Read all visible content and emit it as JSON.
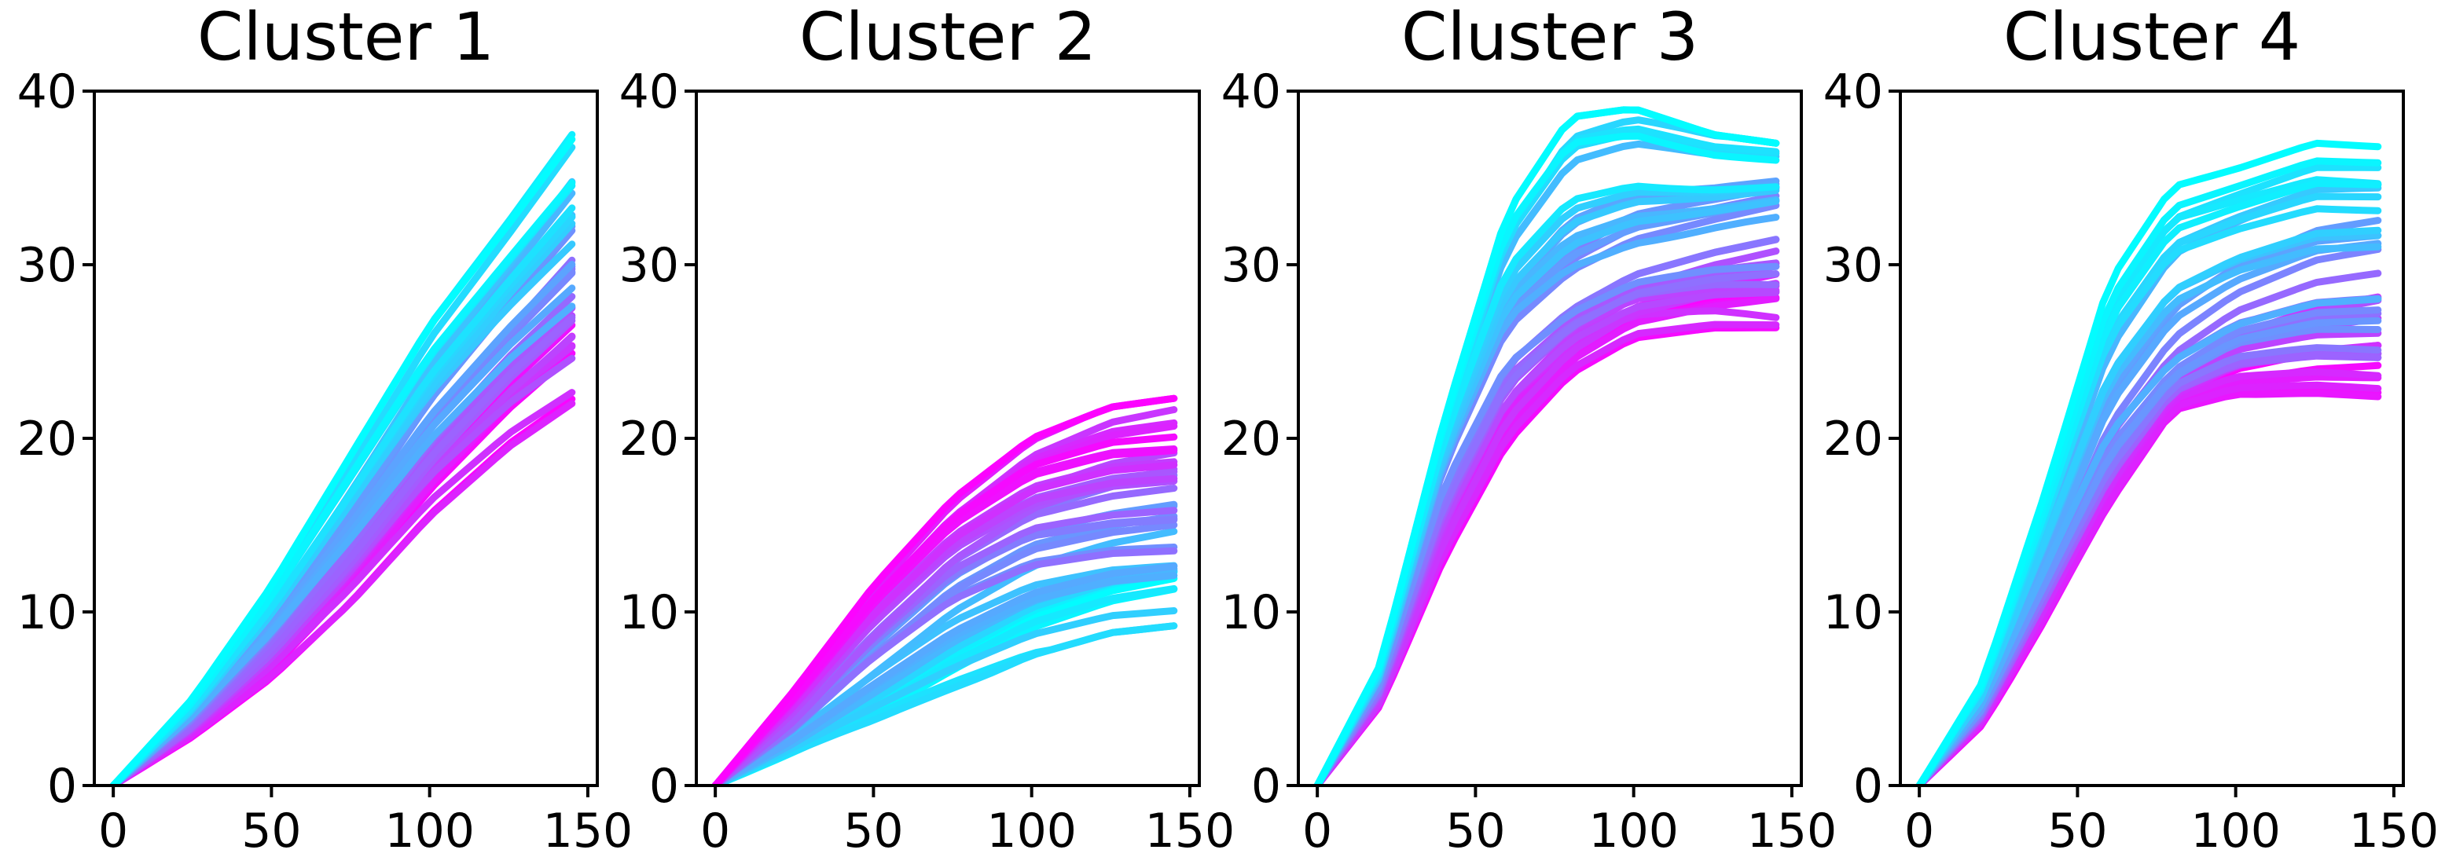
{
  "chart_data": [
    {
      "type": "line",
      "title": "Cluster 1",
      "xlim": [
        -6,
        153
      ],
      "ylim": [
        0,
        40
      ],
      "xticks": [
        "0",
        "50",
        "100",
        "150"
      ],
      "yticks": [
        "0",
        "10",
        "20",
        "30",
        "40"
      ],
      "x_end": 145,
      "series_count": 40,
      "colormap": [
        "#00ffff",
        "#ff00ff"
      ],
      "final_range": [
        22,
        37.5
      ],
      "shape": "near-linear growth, slight curvature",
      "representative_series": [
        {
          "name": "top",
          "x": [
            0,
            25,
            50,
            75,
            100,
            125,
            145
          ],
          "y": [
            0,
            5,
            11.5,
            19,
            26.5,
            32.5,
            37.5
          ]
        },
        {
          "name": "middle",
          "x": [
            0,
            25,
            50,
            75,
            100,
            125,
            145
          ],
          "y": [
            0,
            3.8,
            8.5,
            14,
            20,
            25,
            28.5
          ]
        },
        {
          "name": "bottom",
          "x": [
            0,
            25,
            50,
            75,
            100,
            125,
            145
          ],
          "y": [
            0,
            2.8,
            6.2,
            10.5,
            15.5,
            19.5,
            22
          ]
        }
      ]
    },
    {
      "type": "line",
      "title": "Cluster 2",
      "xlim": [
        -6,
        153
      ],
      "ylim": [
        0,
        40
      ],
      "xticks": [
        "0",
        "50",
        "100",
        "150"
      ],
      "yticks": [
        "0",
        "10",
        "20",
        "30",
        "40"
      ],
      "x_end": 145,
      "series_count": 40,
      "colormap": [
        "#00ffff",
        "#ff00ff"
      ],
      "final_range": [
        9,
        22.5
      ],
      "shape": "saturating growth; magenta curves rise fastest and highest, cyan slowest",
      "representative_series": [
        {
          "name": "magenta-top",
          "x": [
            0,
            25,
            50,
            75,
            100,
            125,
            145
          ],
          "y": [
            0,
            5.5,
            11.5,
            16.5,
            20,
            21.8,
            22.3
          ]
        },
        {
          "name": "middle",
          "x": [
            0,
            25,
            50,
            75,
            100,
            125,
            145
          ],
          "y": [
            0,
            3.5,
            8,
            12,
            14.5,
            15.5,
            16
          ]
        },
        {
          "name": "cyan-bottom",
          "x": [
            0,
            25,
            50,
            75,
            100,
            125,
            145
          ],
          "y": [
            0,
            1.8,
            3.5,
            5.5,
            7.5,
            8.8,
            9.2
          ]
        }
      ]
    },
    {
      "type": "line",
      "title": "Cluster 3",
      "xlim": [
        -6,
        153
      ],
      "ylim": [
        0,
        40
      ],
      "xticks": [
        "0",
        "50",
        "100",
        "150"
      ],
      "yticks": [
        "0",
        "10",
        "20",
        "30",
        "40"
      ],
      "x_end": 145,
      "series_count": 40,
      "colormap": [
        "#00ffff",
        "#ff00ff"
      ],
      "final_range": [
        25,
        37.5
      ],
      "shape": "sigmoid growth, steep between x=20 and x=60, plateau above 25",
      "representative_series": [
        {
          "name": "cyan-top",
          "x": [
            0,
            20,
            40,
            60,
            80,
            100,
            125,
            145
          ],
          "y": [
            0,
            7,
            21,
            33,
            38.5,
            39,
            37.5,
            37
          ]
        },
        {
          "name": "middle",
          "x": [
            0,
            20,
            40,
            60,
            80,
            100,
            125,
            145
          ],
          "y": [
            0,
            6,
            18,
            25.5,
            28.5,
            30.5,
            32,
            33
          ]
        },
        {
          "name": "magenta-bottom",
          "x": [
            0,
            20,
            40,
            60,
            80,
            100,
            125,
            145
          ],
          "y": [
            0,
            4.5,
            12.5,
            19,
            23,
            25,
            25.3,
            25
          ]
        }
      ]
    },
    {
      "type": "line",
      "title": "Cluster 4",
      "xlim": [
        -6,
        153
      ],
      "ylim": [
        0,
        40
      ],
      "xticks": [
        "0",
        "50",
        "100",
        "150"
      ],
      "yticks": [
        "0",
        "10",
        "20",
        "30",
        "40"
      ],
      "x_end": 145,
      "series_count": 40,
      "colormap": [
        "#00ffff",
        "#ff00ff"
      ],
      "final_range": [
        22.5,
        37
      ],
      "shape": "sigmoid growth, plateau from about x=90",
      "representative_series": [
        {
          "name": "cyan-top",
          "x": [
            0,
            20,
            40,
            60,
            80,
            100,
            125,
            145
          ],
          "y": [
            0,
            6,
            17,
            29,
            34.5,
            35.5,
            37,
            36.8
          ]
        },
        {
          "name": "middle",
          "x": [
            0,
            20,
            40,
            60,
            80,
            100,
            125,
            145
          ],
          "y": [
            0,
            4.5,
            12,
            19.5,
            24,
            26.5,
            28,
            28.5
          ]
        },
        {
          "name": "magenta-bottom",
          "x": [
            0,
            20,
            40,
            60,
            80,
            100,
            125,
            145
          ],
          "y": [
            0,
            3.5,
            9.5,
            16,
            21.5,
            22.5,
            22.6,
            22.4
          ]
        }
      ]
    }
  ]
}
